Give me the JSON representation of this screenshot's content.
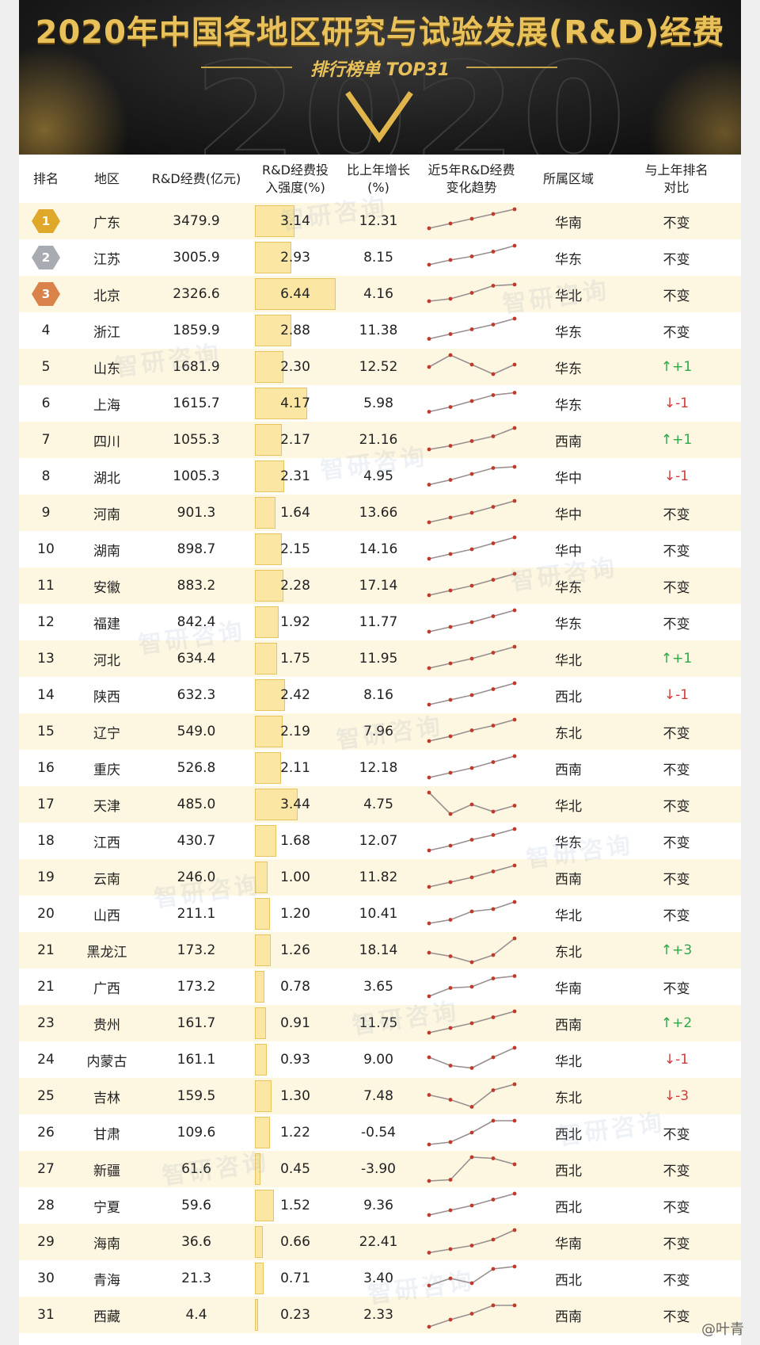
{
  "banner": {
    "title": "2020年中国各地区研究与试验发展(R&D)经费",
    "subtitle": "排行榜单 TOP31",
    "bg_year": "2020"
  },
  "table": {
    "headers": {
      "rank": "排名",
      "region": "地区",
      "funding": "R&D经费(亿元)",
      "intensity_l1": "R&D经费投",
      "intensity_l2": "入强度(%)",
      "growth_l1": "比上年增长",
      "growth_l2": "(%)",
      "trend_l1": "近5年R&D经费",
      "trend_l2": "变化趋势",
      "area": "所属区域",
      "change_l1": "与上年排名",
      "change_l2": "对比"
    },
    "rows": [
      {
        "rank": "1",
        "region": "广东",
        "funding": "3479.9",
        "intensity": "3.14",
        "growth": "12.31",
        "area": "华南",
        "change": "不变",
        "trend": [
          0.2,
          0.4,
          0.6,
          0.8,
          1.0
        ]
      },
      {
        "rank": "2",
        "region": "江苏",
        "funding": "3005.9",
        "intensity": "2.93",
        "growth": "8.15",
        "area": "华东",
        "change": "不变",
        "trend": [
          0.2,
          0.4,
          0.55,
          0.75,
          1.0
        ]
      },
      {
        "rank": "3",
        "region": "北京",
        "funding": "2326.6",
        "intensity": "6.44",
        "growth": "4.16",
        "area": "华北",
        "change": "不变",
        "trend": [
          0.2,
          0.3,
          0.55,
          0.85,
          0.9
        ]
      },
      {
        "rank": "4",
        "region": "浙江",
        "funding": "1859.9",
        "intensity": "2.88",
        "growth": "11.38",
        "area": "华东",
        "change": "不变",
        "trend": [
          0.15,
          0.35,
          0.55,
          0.75,
          1.0
        ]
      },
      {
        "rank": "5",
        "region": "山东",
        "funding": "1681.9",
        "intensity": "2.30",
        "growth": "12.52",
        "area": "华东",
        "change": "↑+1",
        "trend": [
          0.5,
          1.0,
          0.6,
          0.2,
          0.6
        ]
      },
      {
        "rank": "6",
        "region": "上海",
        "funding": "1615.7",
        "intensity": "4.17",
        "growth": "5.98",
        "area": "华东",
        "change": "↓-1",
        "trend": [
          0.15,
          0.35,
          0.6,
          0.85,
          0.95
        ]
      },
      {
        "rank": "7",
        "region": "四川",
        "funding": "1055.3",
        "intensity": "2.17",
        "growth": "21.16",
        "area": "西南",
        "change": "↑+1",
        "trend": [
          0.1,
          0.25,
          0.45,
          0.65,
          1.0
        ]
      },
      {
        "rank": "8",
        "region": "湖北",
        "funding": "1005.3",
        "intensity": "2.31",
        "growth": "4.95",
        "area": "华中",
        "change": "↓-1",
        "trend": [
          0.15,
          0.35,
          0.6,
          0.85,
          0.9
        ]
      },
      {
        "rank": "9",
        "region": "河南",
        "funding": "901.3",
        "intensity": "1.64",
        "growth": "13.66",
        "area": "华中",
        "change": "不变",
        "trend": [
          0.1,
          0.3,
          0.5,
          0.75,
          1.0
        ]
      },
      {
        "rank": "10",
        "region": "湖南",
        "funding": "898.7",
        "intensity": "2.15",
        "growth": "14.16",
        "area": "华中",
        "change": "不变",
        "trend": [
          0.1,
          0.3,
          0.5,
          0.75,
          1.0
        ]
      },
      {
        "rank": "11",
        "region": "安徽",
        "funding": "883.2",
        "intensity": "2.28",
        "growth": "17.14",
        "area": "华东",
        "change": "不变",
        "trend": [
          0.1,
          0.3,
          0.5,
          0.75,
          1.0
        ]
      },
      {
        "rank": "12",
        "region": "福建",
        "funding": "842.4",
        "intensity": "1.92",
        "growth": "11.77",
        "area": "华东",
        "change": "不变",
        "trend": [
          0.1,
          0.3,
          0.5,
          0.75,
          1.0
        ]
      },
      {
        "rank": "13",
        "region": "河北",
        "funding": "634.4",
        "intensity": "1.75",
        "growth": "11.95",
        "area": "华北",
        "change": "↑+1",
        "trend": [
          0.1,
          0.3,
          0.5,
          0.75,
          1.0
        ]
      },
      {
        "rank": "14",
        "region": "陕西",
        "funding": "632.3",
        "intensity": "2.42",
        "growth": "8.16",
        "area": "西北",
        "change": "↓-1",
        "trend": [
          0.1,
          0.3,
          0.5,
          0.75,
          1.0
        ]
      },
      {
        "rank": "15",
        "region": "辽宁",
        "funding": "549.0",
        "intensity": "2.19",
        "growth": "7.96",
        "area": "东北",
        "change": "不变",
        "trend": [
          0.1,
          0.3,
          0.55,
          0.75,
          1.0
        ]
      },
      {
        "rank": "16",
        "region": "重庆",
        "funding": "526.8",
        "intensity": "2.11",
        "growth": "12.18",
        "area": "西南",
        "change": "不变",
        "trend": [
          0.1,
          0.3,
          0.5,
          0.75,
          1.0
        ]
      },
      {
        "rank": "17",
        "region": "天津",
        "funding": "485.0",
        "intensity": "3.44",
        "growth": "4.75",
        "area": "华北",
        "change": "不变",
        "trend": [
          1.0,
          0.1,
          0.5,
          0.2,
          0.45
        ]
      },
      {
        "rank": "18",
        "region": "江西",
        "funding": "430.7",
        "intensity": "1.68",
        "growth": "12.07",
        "area": "华东",
        "change": "不变",
        "trend": [
          0.1,
          0.3,
          0.55,
          0.75,
          1.0
        ]
      },
      {
        "rank": "19",
        "region": "云南",
        "funding": "246.0",
        "intensity": "1.00",
        "growth": "11.82",
        "area": "西南",
        "change": "不变",
        "trend": [
          0.1,
          0.3,
          0.5,
          0.75,
          1.0
        ]
      },
      {
        "rank": "20",
        "region": "山西",
        "funding": "211.1",
        "intensity": "1.20",
        "growth": "10.41",
        "area": "华北",
        "change": "不变",
        "trend": [
          0.1,
          0.25,
          0.6,
          0.7,
          1.0
        ]
      },
      {
        "rank": "21",
        "region": "黑龙江",
        "funding": "173.2",
        "intensity": "1.26",
        "growth": "18.14",
        "area": "东北",
        "change": "↑+3",
        "trend": [
          0.4,
          0.25,
          0.0,
          0.3,
          1.0
        ]
      },
      {
        "rank": "21",
        "region": "广西",
        "funding": "173.2",
        "intensity": "0.78",
        "growth": "3.65",
        "area": "华南",
        "change": "不变",
        "trend": [
          0.1,
          0.45,
          0.5,
          0.85,
          0.95
        ]
      },
      {
        "rank": "23",
        "region": "贵州",
        "funding": "161.7",
        "intensity": "0.91",
        "growth": "11.75",
        "area": "西南",
        "change": "↑+2",
        "trend": [
          0.1,
          0.3,
          0.5,
          0.75,
          1.0
        ]
      },
      {
        "rank": "24",
        "region": "内蒙古",
        "funding": "161.1",
        "intensity": "0.93",
        "growth": "9.00",
        "area": "华北",
        "change": "↓-1",
        "trend": [
          0.6,
          0.25,
          0.15,
          0.6,
          1.0
        ]
      },
      {
        "rank": "25",
        "region": "吉林",
        "funding": "159.5",
        "intensity": "1.30",
        "growth": "7.48",
        "area": "东北",
        "change": "↓-3",
        "trend": [
          0.55,
          0.35,
          0.05,
          0.75,
          1.0
        ]
      },
      {
        "rank": "26",
        "region": "甘肃",
        "funding": "109.6",
        "intensity": "1.22",
        "growth": "-0.54",
        "area": "西北",
        "change": "不变",
        "trend": [
          0.0,
          0.1,
          0.5,
          1.0,
          1.0
        ]
      },
      {
        "rank": "27",
        "region": "新疆",
        "funding": "61.6",
        "intensity": "0.45",
        "growth": "-3.90",
        "area": "西北",
        "change": "不变",
        "trend": [
          0.0,
          0.05,
          1.0,
          0.95,
          0.7
        ]
      },
      {
        "rank": "28",
        "region": "宁夏",
        "funding": "59.6",
        "intensity": "1.52",
        "growth": "9.36",
        "area": "西北",
        "change": "不变",
        "trend": [
          0.1,
          0.3,
          0.5,
          0.75,
          1.0
        ]
      },
      {
        "rank": "29",
        "region": "海南",
        "funding": "36.6",
        "intensity": "0.66",
        "growth": "22.41",
        "area": "华南",
        "change": "不变",
        "trend": [
          0.05,
          0.2,
          0.35,
          0.6,
          1.0
        ]
      },
      {
        "rank": "30",
        "region": "青海",
        "funding": "21.3",
        "intensity": "0.71",
        "growth": "3.40",
        "area": "西北",
        "change": "不变",
        "trend": [
          0.2,
          0.5,
          0.3,
          0.9,
          1.0
        ]
      },
      {
        "rank": "31",
        "region": "西藏",
        "funding": "4.4",
        "intensity": "0.23",
        "growth": "2.33",
        "area": "西南",
        "change": "不变",
        "trend": [
          0.0,
          0.3,
          0.55,
          0.9,
          0.9
        ]
      }
    ]
  },
  "watermark": "智研咨询",
  "credit": "@叶青",
  "colors": {
    "gold": "#e8c15a",
    "row_even": "#fdf6e0",
    "up": "#2aa84a",
    "down": "#d23b3b",
    "line": "#9a8f8f",
    "dot": "#c0392b"
  }
}
